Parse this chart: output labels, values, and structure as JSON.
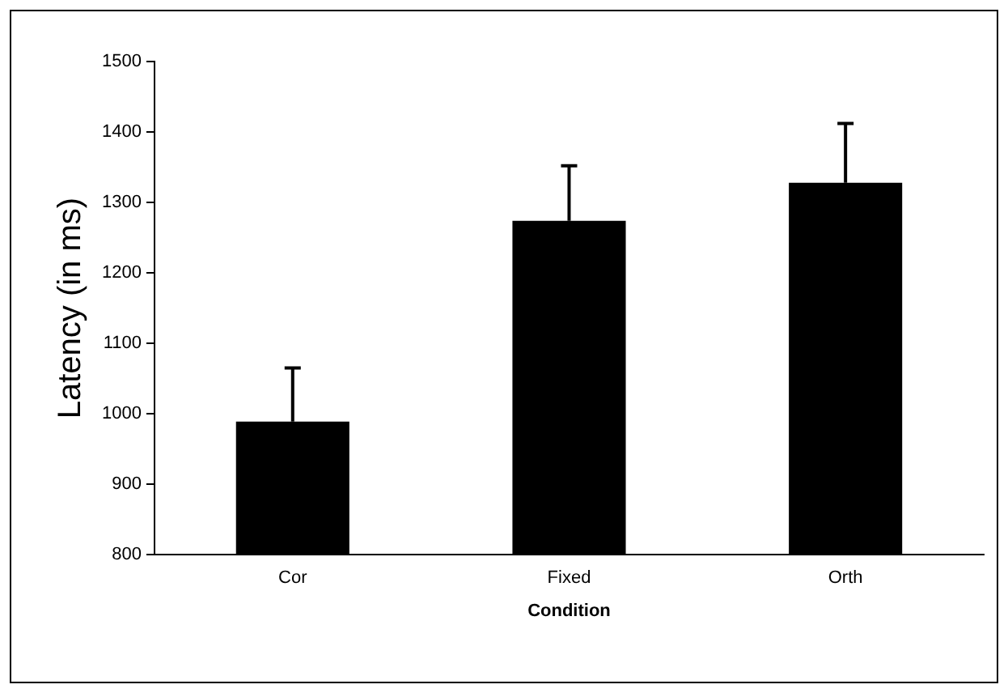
{
  "chart_data": {
    "type": "bar",
    "xlabel": "Condition",
    "ylabel": "Latency (in ms)",
    "categories": [
      "Cor",
      "Fixed",
      "Orth"
    ],
    "values": [
      989,
      1274,
      1328
    ],
    "errors": [
      [
        989,
        1065
      ],
      [
        1274,
        1352
      ],
      [
        1328,
        1412
      ]
    ],
    "color": "#000000",
    "ylim": [
      800,
      1500
    ],
    "yticks": [
      800,
      900,
      1000,
      1100,
      1200,
      1300,
      1400,
      1500
    ],
    "grid": false,
    "legend": false
  }
}
